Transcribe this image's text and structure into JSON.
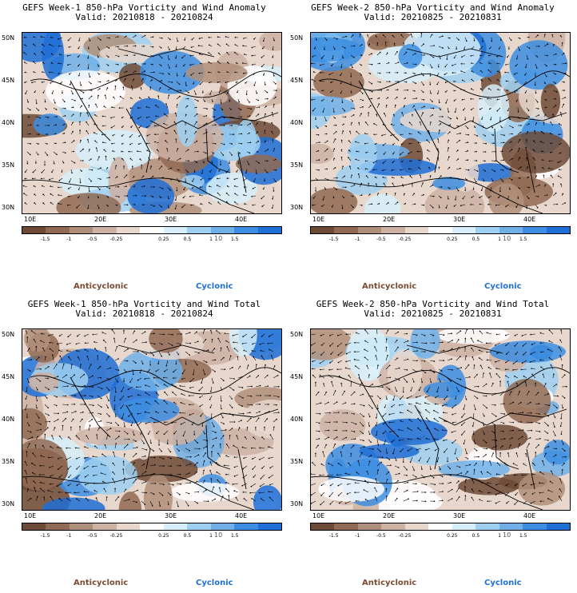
{
  "colors": {
    "anticyclonic_label": "#7a4a32",
    "cyclonic_label": "#1f6fd6",
    "scale": [
      "#6d4a36",
      "#906a52",
      "#b08f7a",
      "#cdb2a3",
      "#e7d7cd",
      "#ffffff",
      "#d6eef9",
      "#9fd0f1",
      "#6fb0e9",
      "#3d8ee2",
      "#1f6fd6"
    ]
  },
  "colorbar": {
    "ticks": [
      "-1.5",
      "-1",
      "-0.5",
      "-0.25",
      "0.25",
      "0.5",
      "1",
      "1.5"
    ],
    "unit": "10"
  },
  "axes": {
    "lat_labels": [
      "50N",
      "45N",
      "40N",
      "35N",
      "30N"
    ],
    "lon_labels": [
      "10E",
      "20E",
      "30E",
      "40E"
    ]
  },
  "legend": {
    "anticyclonic": "Anticyclonic",
    "cyclonic": "Cyclonic"
  },
  "panels": [
    {
      "title": "GEFS Week-1 850-hPa Vorticity and Wind Anomaly",
      "valid": "Valid: 20210818 - 20210824"
    },
    {
      "title": "GEFS Week-2 850-hPa Vorticity and Wind Anomaly",
      "valid": "Valid: 20210825 - 20210831"
    },
    {
      "title": "GEFS Week-1 850-hPa Vorticity and Wind Total",
      "valid": "Valid: 20210818 - 20210824"
    },
    {
      "title": "GEFS Week-2 850-hPa Vorticity and Wind Total",
      "valid": "Valid: 20210825 - 20210831"
    }
  ]
}
